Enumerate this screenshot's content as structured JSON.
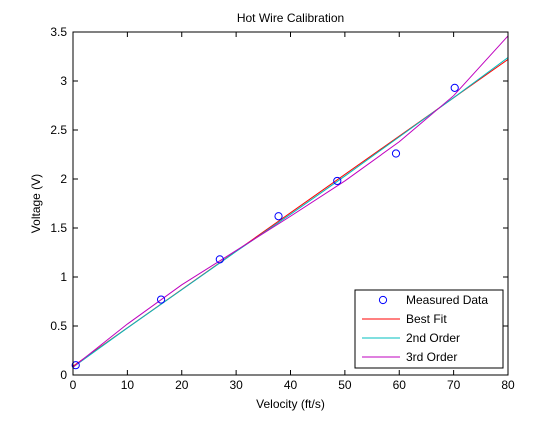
{
  "chart_data": {
    "type": "line",
    "title": "Hot Wire Calibration",
    "xlabel": "Velocity (ft/s)",
    "ylabel": "Voltage (V)",
    "xlim": [
      0,
      80
    ],
    "ylim": [
      0,
      3.5
    ],
    "x_ticks": [
      0,
      10,
      20,
      30,
      40,
      50,
      60,
      70,
      80
    ],
    "x_tick_labels": [
      "0",
      "10",
      "20",
      "30",
      "40",
      "50",
      "60",
      "70",
      "80"
    ],
    "y_ticks": [
      0,
      0.5,
      1,
      1.5,
      2,
      2.5,
      3,
      3.5
    ],
    "y_tick_labels": [
      "0",
      "0.5",
      "1",
      "1.5",
      "2",
      "2.5",
      "3",
      "3.5"
    ],
    "grid": false,
    "legend_position": "bottom-right",
    "series": [
      {
        "name": "Measured Data",
        "kind": "markers",
        "marker": "circle",
        "color": "#0000ff",
        "x": [
          0.5,
          16.2,
          27.0,
          37.8,
          48.6,
          59.4,
          70.2
        ],
        "y": [
          0.1,
          0.77,
          1.18,
          1.62,
          1.98,
          2.26,
          2.93
        ]
      },
      {
        "name": "Best Fit",
        "kind": "line",
        "color": "#ff0000",
        "x": [
          0,
          80
        ],
        "y": [
          0.09,
          3.22
        ]
      },
      {
        "name": "2nd Order",
        "kind": "line",
        "color": "#00bfbf",
        "x": [
          0,
          10,
          20,
          30,
          40,
          50,
          60,
          70,
          80
        ],
        "y": [
          0.08,
          0.48,
          0.87,
          1.26,
          1.64,
          2.03,
          2.43,
          2.83,
          3.24
        ]
      },
      {
        "name": "3rd Order",
        "kind": "line",
        "color": "#bf00bf",
        "x": [
          0,
          10,
          20,
          30,
          40,
          50,
          60,
          70,
          80
        ],
        "y": [
          0.08,
          0.52,
          0.92,
          1.27,
          1.62,
          1.98,
          2.38,
          2.85,
          3.46
        ]
      }
    ]
  }
}
